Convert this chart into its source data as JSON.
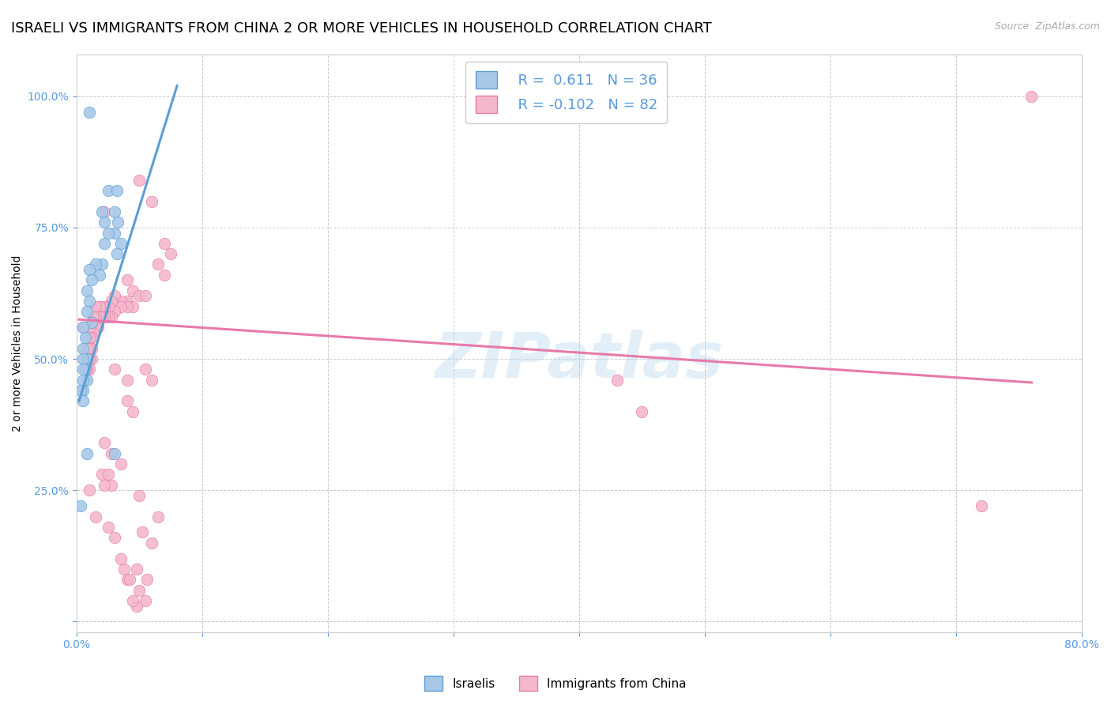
{
  "title": "ISRAELI VS IMMIGRANTS FROM CHINA 2 OR MORE VEHICLES IN HOUSEHOLD CORRELATION CHART",
  "source": "Source: ZipAtlas.com",
  "ylabel": "2 or more Vehicles in Household",
  "legend_blue_R": "R =  0.611",
  "legend_blue_N": "N = 36",
  "legend_pink_R": "R = -0.102",
  "legend_pink_N": "N = 82",
  "legend_blue_label": "Israelis",
  "legend_pink_label": "Immigrants from China",
  "watermark": "ZIPatlas",
  "blue_color": "#a8c8e8",
  "pink_color": "#f4b8cc",
  "blue_line_color": "#5a9fd4",
  "pink_line_color": "#e87aaa",
  "blue_scatter": [
    [
      0.01,
      0.97
    ],
    [
      0.025,
      0.82
    ],
    [
      0.032,
      0.82
    ],
    [
      0.03,
      0.78
    ],
    [
      0.033,
      0.76
    ],
    [
      0.03,
      0.74
    ],
    [
      0.035,
      0.72
    ],
    [
      0.032,
      0.7
    ],
    [
      0.02,
      0.78
    ],
    [
      0.022,
      0.76
    ],
    [
      0.025,
      0.74
    ],
    [
      0.022,
      0.72
    ],
    [
      0.02,
      0.68
    ],
    [
      0.015,
      0.68
    ],
    [
      0.018,
      0.66
    ],
    [
      0.01,
      0.67
    ],
    [
      0.012,
      0.65
    ],
    [
      0.008,
      0.63
    ],
    [
      0.01,
      0.61
    ],
    [
      0.008,
      0.59
    ],
    [
      0.012,
      0.57
    ],
    [
      0.005,
      0.56
    ],
    [
      0.007,
      0.54
    ],
    [
      0.005,
      0.52
    ],
    [
      0.008,
      0.5
    ],
    [
      0.005,
      0.5
    ],
    [
      0.007,
      0.48
    ],
    [
      0.005,
      0.48
    ],
    [
      0.008,
      0.46
    ],
    [
      0.005,
      0.46
    ],
    [
      0.005,
      0.44
    ],
    [
      0.003,
      0.44
    ],
    [
      0.005,
      0.42
    ],
    [
      0.003,
      0.22
    ],
    [
      0.008,
      0.32
    ],
    [
      0.03,
      0.32
    ]
  ],
  "pink_scatter": [
    [
      0.76,
      1.0
    ],
    [
      0.05,
      0.84
    ],
    [
      0.06,
      0.8
    ],
    [
      0.022,
      0.78
    ],
    [
      0.07,
      0.72
    ],
    [
      0.075,
      0.7
    ],
    [
      0.065,
      0.68
    ],
    [
      0.07,
      0.66
    ],
    [
      0.04,
      0.65
    ],
    [
      0.045,
      0.63
    ],
    [
      0.05,
      0.62
    ],
    [
      0.055,
      0.62
    ],
    [
      0.04,
      0.61
    ],
    [
      0.045,
      0.6
    ],
    [
      0.035,
      0.61
    ],
    [
      0.04,
      0.6
    ],
    [
      0.03,
      0.62
    ],
    [
      0.035,
      0.6
    ],
    [
      0.028,
      0.61
    ],
    [
      0.03,
      0.59
    ],
    [
      0.025,
      0.6
    ],
    [
      0.028,
      0.58
    ],
    [
      0.022,
      0.6
    ],
    [
      0.025,
      0.58
    ],
    [
      0.02,
      0.6
    ],
    [
      0.022,
      0.58
    ],
    [
      0.018,
      0.6
    ],
    [
      0.02,
      0.58
    ],
    [
      0.015,
      0.6
    ],
    [
      0.018,
      0.58
    ],
    [
      0.015,
      0.58
    ],
    [
      0.017,
      0.56
    ],
    [
      0.013,
      0.58
    ],
    [
      0.015,
      0.56
    ],
    [
      0.012,
      0.57
    ],
    [
      0.013,
      0.55
    ],
    [
      0.01,
      0.56
    ],
    [
      0.012,
      0.54
    ],
    [
      0.01,
      0.54
    ],
    [
      0.012,
      0.52
    ],
    [
      0.01,
      0.52
    ],
    [
      0.012,
      0.5
    ],
    [
      0.008,
      0.52
    ],
    [
      0.01,
      0.5
    ],
    [
      0.008,
      0.5
    ],
    [
      0.01,
      0.48
    ],
    [
      0.008,
      0.48
    ],
    [
      0.005,
      0.56
    ],
    [
      0.055,
      0.48
    ],
    [
      0.06,
      0.46
    ],
    [
      0.03,
      0.48
    ],
    [
      0.04,
      0.46
    ],
    [
      0.02,
      0.28
    ],
    [
      0.035,
      0.3
    ],
    [
      0.025,
      0.28
    ],
    [
      0.028,
      0.26
    ],
    [
      0.022,
      0.26
    ],
    [
      0.05,
      0.24
    ],
    [
      0.01,
      0.25
    ],
    [
      0.015,
      0.2
    ],
    [
      0.028,
      0.32
    ],
    [
      0.022,
      0.34
    ],
    [
      0.025,
      0.18
    ],
    [
      0.03,
      0.16
    ],
    [
      0.035,
      0.12
    ],
    [
      0.038,
      0.1
    ],
    [
      0.04,
      0.08
    ],
    [
      0.048,
      0.1
    ],
    [
      0.04,
      0.42
    ],
    [
      0.045,
      0.4
    ],
    [
      0.042,
      0.08
    ],
    [
      0.056,
      0.08
    ],
    [
      0.06,
      0.15
    ],
    [
      0.052,
      0.17
    ],
    [
      0.055,
      0.04
    ],
    [
      0.048,
      0.03
    ],
    [
      0.045,
      0.04
    ],
    [
      0.05,
      0.06
    ],
    [
      0.065,
      0.2
    ],
    [
      0.72,
      0.22
    ],
    [
      0.43,
      0.46
    ],
    [
      0.45,
      0.4
    ]
  ],
  "blue_trendline_x": [
    0.002,
    0.08
  ],
  "blue_trendline_y": [
    0.42,
    1.02
  ],
  "pink_trendline_x": [
    0.002,
    0.76
  ],
  "pink_trendline_y": [
    0.575,
    0.455
  ],
  "xlim": [
    0.0,
    0.8
  ],
  "ylim": [
    -0.02,
    1.08
  ],
  "xticks": [
    0.0,
    0.1,
    0.2,
    0.3,
    0.4,
    0.5,
    0.6,
    0.7,
    0.8
  ],
  "xticklabels": [
    "0.0%",
    "",
    "",
    "",
    "",
    "",
    "",
    "",
    "80.0%"
  ],
  "yticks": [
    0.0,
    0.25,
    0.5,
    0.75,
    1.0
  ],
  "yticklabels": [
    "",
    "25.0%",
    "50.0%",
    "75.0%",
    "100.0%"
  ],
  "bg_color": "#ffffff",
  "grid_color": "#cccccc",
  "title_fontsize": 13,
  "axis_label_fontsize": 10,
  "tick_fontsize": 10,
  "legend_fontsize": 13,
  "tick_color": "#5599dd"
}
